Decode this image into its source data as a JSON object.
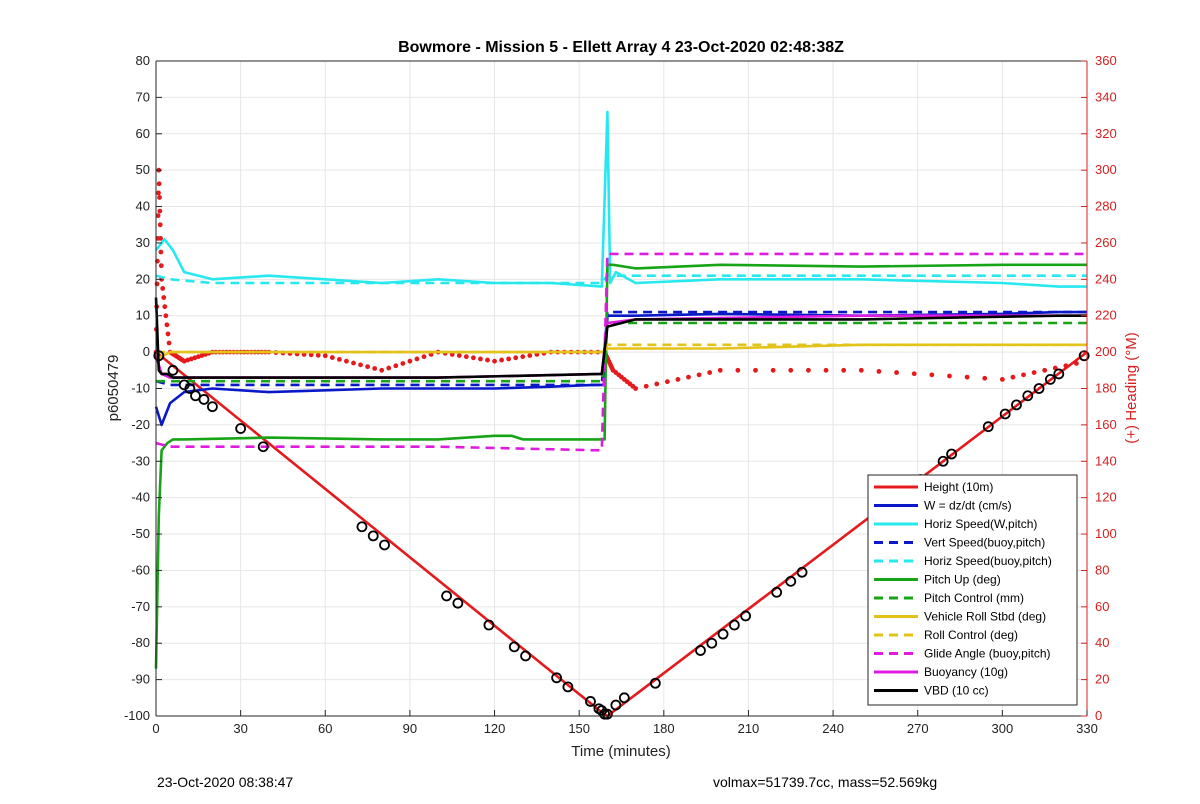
{
  "chart_data": {
    "type": "line",
    "title": "Bowmore - Mission 5 - Ellett Array 4 23-Oct-2020 02:48:38Z",
    "xlabel": "Time (minutes)",
    "ylabel": "p6050479",
    "y2label": "(+) Heading (°M)",
    "xlim": [
      0,
      330
    ],
    "ylim": [
      -100,
      80
    ],
    "y2lim": [
      0,
      360
    ],
    "xticks": [
      0,
      30,
      60,
      90,
      120,
      150,
      180,
      210,
      240,
      270,
      300,
      330
    ],
    "yticks": [
      -100,
      -90,
      -80,
      -70,
      -60,
      -50,
      -40,
      -30,
      -20,
      -10,
      0,
      10,
      20,
      30,
      40,
      50,
      60,
      70,
      80
    ],
    "y2ticks": [
      0,
      20,
      40,
      60,
      80,
      100,
      120,
      140,
      160,
      180,
      200,
      220,
      240,
      260,
      280,
      300,
      320,
      340,
      360
    ],
    "grid": true,
    "legend_position": "bottom-right",
    "series": [
      {
        "name": "Height (10m)",
        "color": "#e41a1c",
        "style": "solid",
        "x": [
          0,
          158,
          160,
          330
        ],
        "y": [
          0,
          -99,
          -100,
          0
        ]
      },
      {
        "name": "W = dz/dt (cm/s)",
        "color": "#0a19c8",
        "style": "solid",
        "x": [
          0,
          2,
          5,
          10,
          20,
          40,
          60,
          80,
          100,
          120,
          140,
          155,
          159,
          160,
          162,
          170,
          200,
          250,
          300,
          320,
          330
        ],
        "y": [
          -15,
          -20,
          -14,
          -11,
          -10,
          -11,
          -10.5,
          -10,
          -10,
          -10,
          -9.5,
          -9,
          -9,
          10,
          10,
          10,
          10.5,
          10,
          10.5,
          11,
          11
        ]
      },
      {
        "name": "Horiz Speed(W,pitch)",
        "color": "#27e8ee",
        "style": "solid",
        "x": [
          0,
          3,
          6,
          10,
          20,
          40,
          60,
          80,
          100,
          120,
          140,
          158,
          160,
          161,
          163,
          170,
          200,
          250,
          300,
          320,
          330
        ],
        "y": [
          28,
          31,
          28,
          22,
          20,
          21,
          20,
          19,
          20,
          19,
          19,
          18,
          66,
          19,
          22,
          19,
          20,
          20,
          19,
          18,
          18
        ]
      },
      {
        "name": "Vert Speed(buoy,pitch)",
        "color": "#0a19c8",
        "style": "dashed",
        "x": [
          0,
          5,
          20,
          100,
          158,
          160,
          170,
          250,
          330
        ],
        "y": [
          -8,
          -9,
          -9,
          -9,
          -9,
          11,
          11,
          11,
          11
        ]
      },
      {
        "name": "Horiz Speed(buoy,pitch)",
        "color": "#27e8ee",
        "style": "dashed",
        "x": [
          0,
          5,
          20,
          100,
          158,
          160,
          170,
          250,
          330
        ],
        "y": [
          21,
          20,
          19,
          19,
          19,
          21,
          21,
          21,
          21
        ]
      },
      {
        "name": "Pitch Up (deg)",
        "color": "#17a517",
        "style": "solid",
        "x": [
          0,
          1,
          2,
          4,
          6,
          10,
          40,
          80,
          100,
          120,
          126,
          130,
          150,
          159,
          160,
          162,
          170,
          200,
          250,
          300,
          330
        ],
        "y": [
          -87,
          -45,
          -27,
          -25,
          -24,
          -24,
          -23.5,
          -24,
          -24,
          -23,
          -23,
          -24,
          -24,
          -24,
          24,
          24,
          23,
          24,
          23.5,
          24,
          24
        ]
      },
      {
        "name": "Pitch Control (mm)",
        "color": "#17a517",
        "style": "dashed",
        "x": [
          0,
          5,
          20,
          100,
          158,
          160,
          170,
          250,
          330
        ],
        "y": [
          -8,
          -8,
          -8,
          -8,
          -8,
          8,
          8,
          8,
          8
        ]
      },
      {
        "name": "Vehicle Roll Stbd (deg)",
        "color": "#e3c21a",
        "style": "solid",
        "x": [
          0,
          5,
          20,
          40,
          60,
          80,
          100,
          120,
          140,
          158,
          160,
          170,
          200,
          250,
          300,
          330
        ],
        "y": [
          -2,
          0,
          0,
          0,
          0,
          0,
          0,
          0,
          0,
          0,
          1,
          1,
          1,
          2,
          2,
          2
        ]
      },
      {
        "name": "Roll Control (deg)",
        "color": "#e3c21a",
        "style": "dashed",
        "x": [
          0,
          5,
          20,
          100,
          158,
          160,
          170,
          250,
          330
        ],
        "y": [
          0,
          0,
          0,
          0,
          0,
          2,
          2,
          2,
          2
        ]
      },
      {
        "name": "Glide Angle (buoy,pitch)",
        "color": "#e01be0",
        "style": "dashed",
        "x": [
          0,
          5,
          20,
          100,
          158,
          160,
          170,
          250,
          330
        ],
        "y": [
          -25,
          -26,
          -26,
          -26,
          -27,
          27,
          27,
          27,
          27
        ]
      },
      {
        "name": "Buoyancy (10g)",
        "color": "#e01be0",
        "style": "solid",
        "x": [
          0,
          2,
          5,
          20,
          100,
          158,
          160,
          170,
          250,
          330
        ],
        "y": [
          -1,
          -6,
          -7,
          -7,
          -7,
          -6,
          8,
          9,
          10,
          10
        ]
      },
      {
        "name": "VBD (10 cc)",
        "color": "#000000",
        "style": "solid",
        "x": [
          0,
          1,
          2,
          4,
          6,
          20,
          100,
          158,
          160,
          170,
          250,
          320,
          330
        ],
        "y": [
          15,
          -5,
          -6,
          -6,
          -7,
          -7,
          -7,
          -6,
          7,
          9,
          9,
          10,
          10
        ]
      }
    ],
    "heading_series": {
      "name": "Heading",
      "color": "#e41a1c",
      "axis": "right",
      "x": [
        0,
        1,
        2,
        5,
        10,
        20,
        30,
        40,
        60,
        80,
        100,
        120,
        140,
        159,
        162,
        170,
        200,
        250,
        300,
        330
      ],
      "y": [
        200,
        300,
        240,
        200,
        195,
        200,
        200,
        200,
        198,
        190,
        200,
        195,
        200,
        200,
        190,
        180,
        190,
        190,
        185,
        195
      ]
    },
    "marker_series": {
      "name": "markers",
      "color": "#000000",
      "x": [
        1,
        6,
        10,
        12,
        14,
        17,
        20,
        30,
        38,
        73,
        77,
        81,
        103,
        107,
        118,
        127,
        131,
        142,
        146,
        154,
        157,
        158,
        159,
        160,
        163,
        166,
        177,
        193,
        197,
        201,
        205,
        209,
        220,
        225,
        229,
        271,
        279,
        282,
        295,
        301,
        305,
        309,
        313,
        317,
        320,
        329
      ],
      "y": [
        -1,
        -5,
        -9,
        -10,
        -12,
        -13,
        -15,
        -21,
        -26,
        -48,
        -50.5,
        -53,
        -67,
        -69,
        -75,
        -81,
        -83.5,
        -89.5,
        -92,
        -96,
        -98,
        -98.5,
        -99.5,
        -99.5,
        -97,
        -95,
        -91,
        -82,
        -80,
        -77.5,
        -75,
        -72.5,
        -66,
        -63,
        -60.5,
        -35,
        -30,
        -28,
        -20.5,
        -17,
        -14.5,
        -12,
        -10,
        -7.5,
        -6,
        -1
      ]
    }
  },
  "footer": {
    "timestamp": "23-Oct-2020 08:38:47",
    "stats": "volmax=51739.7cc, mass=52.569kg"
  }
}
